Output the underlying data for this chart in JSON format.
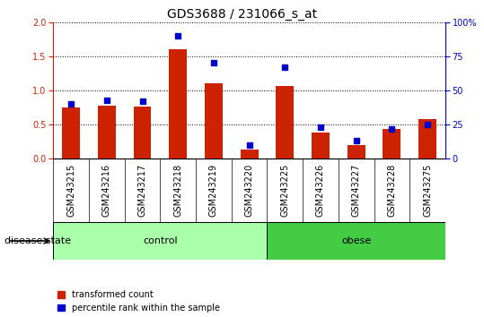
{
  "title": "GDS3688 / 231066_s_at",
  "samples": [
    "GSM243215",
    "GSM243216",
    "GSM243217",
    "GSM243218",
    "GSM243219",
    "GSM243220",
    "GSM243225",
    "GSM243226",
    "GSM243227",
    "GSM243228",
    "GSM243275"
  ],
  "transformed_count": [
    0.75,
    0.78,
    0.76,
    1.6,
    1.1,
    0.13,
    1.07,
    0.38,
    0.2,
    0.43,
    0.58
  ],
  "percentile_rank": [
    40,
    43,
    42,
    90,
    70,
    10,
    67,
    23,
    13,
    22,
    25
  ],
  "control_indices": [
    0,
    1,
    2,
    3,
    4,
    5
  ],
  "obese_indices": [
    6,
    7,
    8,
    9,
    10
  ],
  "control_color": "#AAFFAA",
  "obese_color": "#44CC44",
  "bar_color": "#CC2200",
  "marker_color": "#0000CC",
  "left_ylim": [
    0,
    2
  ],
  "right_ylim": [
    0,
    100
  ],
  "left_yticks": [
    0,
    0.5,
    1.0,
    1.5,
    2.0
  ],
  "right_yticks": [
    0,
    25,
    50,
    75,
    100
  ],
  "right_yticklabels": [
    "0",
    "25",
    "50",
    "75",
    "100%"
  ],
  "legend_labels": [
    "transformed count",
    "percentile rank within the sample"
  ],
  "disease_state_label": "disease state",
  "title_fontsize": 10,
  "tick_fontsize": 7,
  "label_fontsize": 8,
  "group_fontsize": 8,
  "xtick_bg_color": "#DDDDDD",
  "plot_bg_color": "#FFFFFF"
}
